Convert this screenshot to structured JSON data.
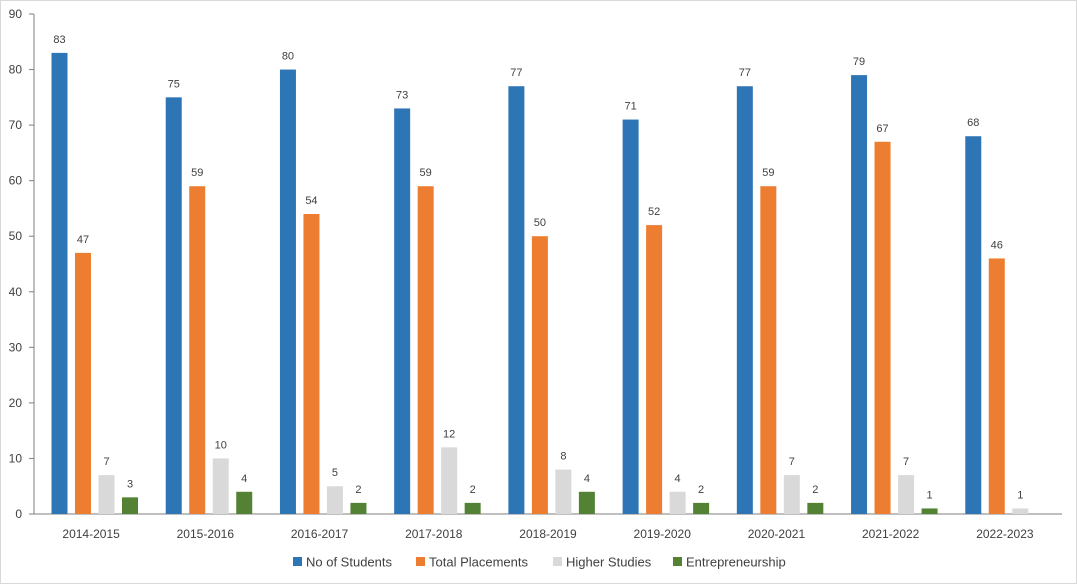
{
  "chart_data": {
    "type": "bar",
    "title": "",
    "xlabel": "",
    "ylabel": "",
    "categories": [
      "2014-2015",
      "2015-2016",
      "2016-2017",
      "2017-2018",
      "2018-2019",
      "2019-2020",
      "2020-2021",
      "2021-2022",
      "2022-2023"
    ],
    "series": [
      {
        "name": "No of Students",
        "color": "#2e75b6",
        "values": [
          83,
          75,
          80,
          73,
          77,
          71,
          77,
          79,
          68
        ]
      },
      {
        "name": "Total Placements",
        "color": "#ed7d31",
        "values": [
          47,
          59,
          54,
          59,
          50,
          52,
          59,
          67,
          46
        ]
      },
      {
        "name": "Higher Studies",
        "color": "#d9d9d9",
        "values": [
          7,
          10,
          5,
          12,
          8,
          4,
          7,
          7,
          1
        ]
      },
      {
        "name": "Entrepreneurship",
        "color": "#548235",
        "values": [
          3,
          4,
          2,
          2,
          4,
          2,
          2,
          1,
          null
        ]
      }
    ],
    "ylim": [
      0,
      90
    ],
    "yticks": [
      0,
      10,
      20,
      30,
      40,
      50,
      60,
      70,
      80,
      90
    ],
    "grid": false,
    "legend_position": "bottom",
    "data_labels": true
  }
}
